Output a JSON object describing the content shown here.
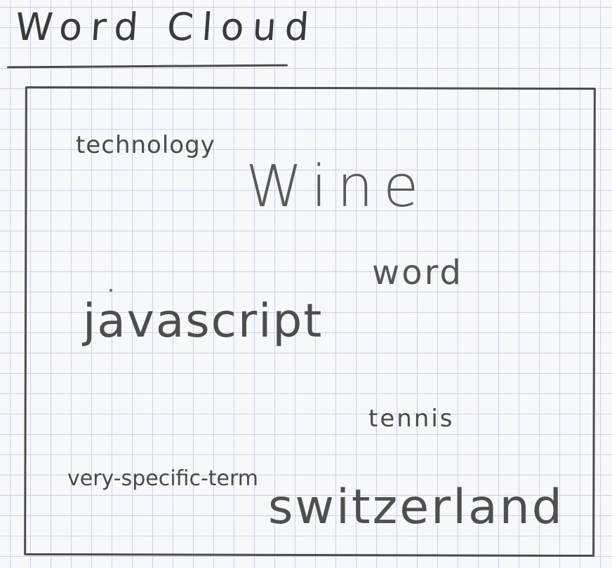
{
  "title": "Word Cloud",
  "words": [
    {
      "text": "technology"
    },
    {
      "text": "Wine"
    },
    {
      "text": "word"
    },
    {
      "text": "javascript"
    },
    {
      "text": "tennis"
    },
    {
      "text": "very-specific-term"
    },
    {
      "text": "switzerland"
    }
  ]
}
